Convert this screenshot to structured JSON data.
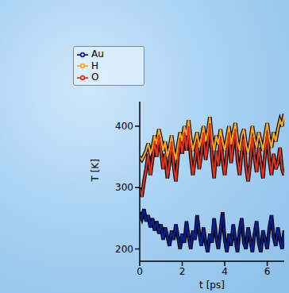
{
  "chart_data": {
    "type": "line",
    "x_label": "t [ps]",
    "y_label": "T [K]",
    "x": [
      0,
      0.1,
      0.2,
      0.3,
      0.4,
      0.5,
      0.6,
      0.7,
      0.8,
      0.9,
      1.0,
      1.1,
      1.2,
      1.3,
      1.4,
      1.5,
      1.6,
      1.7,
      1.8,
      1.9,
      2.0,
      2.1,
      2.2,
      2.3,
      2.4,
      2.5,
      2.6,
      2.7,
      2.8,
      2.9,
      3.0,
      3.1,
      3.2,
      3.3,
      3.4,
      3.5,
      3.6,
      3.7,
      3.8,
      3.9,
      4.0,
      4.1,
      4.2,
      4.3,
      4.4,
      4.5,
      4.6,
      4.7,
      4.8,
      4.9,
      5.0,
      5.1,
      5.2,
      5.3,
      5.4,
      5.5,
      5.6,
      5.7,
      5.8,
      5.9,
      6.0,
      6.1,
      6.2,
      6.3,
      6.4,
      6.5,
      6.6,
      6.7,
      6.8
    ],
    "series": [
      {
        "name": "H",
        "color": "#f5a623",
        "values": [
          350,
          345,
          352,
          360,
          372,
          355,
          365,
          385,
          370,
          395,
          380,
          360,
          375,
          350,
          365,
          385,
          360,
          345,
          370,
          390,
          375,
          400,
          385,
          410,
          380,
          360,
          375,
          390,
          365,
          380,
          400,
          375,
          390,
          415,
          380,
          360,
          385,
          370,
          395,
          375,
          360,
          380,
          400,
          370,
          390,
          405,
          375,
          360,
          385,
          395,
          370,
          355,
          375,
          400,
          380,
          365,
          390,
          375,
          360,
          385,
          405,
          380,
          365,
          390,
          375,
          395,
          410,
          400,
          420
        ]
      },
      {
        "name": "O",
        "color": "#e0321c",
        "values": [
          300,
          285,
          310,
          330,
          355,
          320,
          345,
          375,
          350,
          385,
          360,
          330,
          355,
          315,
          340,
          375,
          335,
          310,
          350,
          380,
          355,
          390,
          360,
          400,
          350,
          320,
          345,
          375,
          330,
          355,
          390,
          345,
          370,
          405,
          350,
          315,
          360,
          335,
          380,
          345,
          320,
          355,
          390,
          340,
          370,
          395,
          345,
          320,
          360,
          380,
          335,
          310,
          340,
          385,
          350,
          325,
          365,
          340,
          315,
          355,
          390,
          345,
          320,
          355,
          330,
          340,
          365,
          330,
          320
        ]
      },
      {
        "name": "Au",
        "color": "#0b1f8f",
        "values": [
          260,
          250,
          265,
          245,
          255,
          235,
          250,
          230,
          245,
          225,
          240,
          215,
          235,
          220,
          205,
          230,
          215,
          240,
          220,
          200,
          225,
          210,
          245,
          220,
          200,
          230,
          215,
          255,
          225,
          205,
          235,
          210,
          195,
          225,
          210,
          250,
          220,
          200,
          230,
          260,
          215,
          195,
          225,
          205,
          240,
          215,
          195,
          230,
          250,
          210,
          200,
          235,
          215,
          195,
          225,
          245,
          210,
          195,
          230,
          215,
          200,
          235,
          255,
          220,
          205,
          235,
          215,
          200,
          230
        ]
      }
    ],
    "xlim": [
      0,
      6.8
    ],
    "xticks": [
      0,
      2,
      4,
      6
    ],
    "ylim": [
      180,
      440
    ],
    "yticks": [
      200,
      300,
      400
    ],
    "grid": false,
    "legend": "top left"
  }
}
